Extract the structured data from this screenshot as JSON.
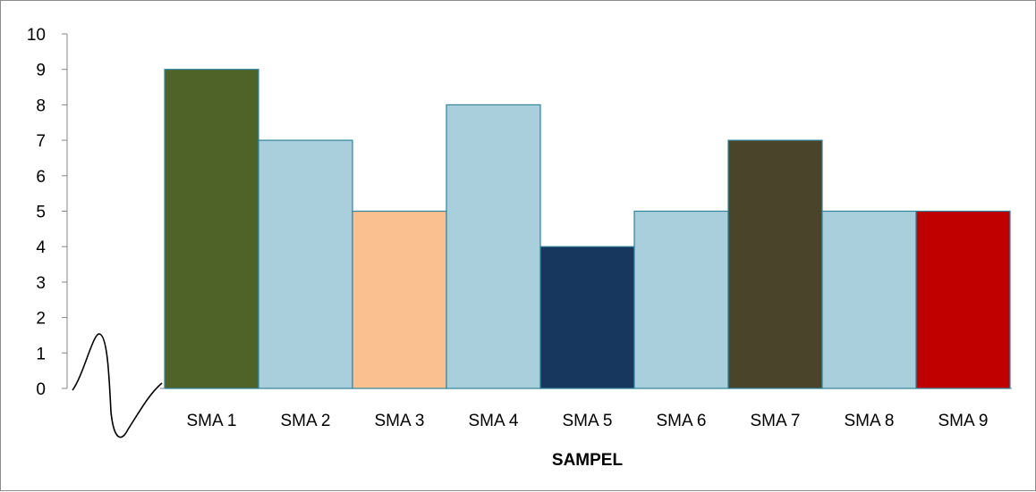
{
  "chart_data": {
    "type": "bar",
    "title": "",
    "xlabel": "SAMPEL",
    "ylabel": "",
    "ylim": [
      0,
      10
    ],
    "yticks": [
      "0",
      "1",
      "2",
      "3",
      "4",
      "5",
      "6",
      "7",
      "8",
      "9",
      "10"
    ],
    "categories": [
      "SMA 1",
      "SMA 2",
      "SMA 3",
      "SMA 4",
      "SMA 5",
      "SMA 6",
      "SMA 7",
      "SMA 8",
      "SMA 9"
    ],
    "values": [
      9,
      7,
      5,
      8,
      4,
      5,
      7,
      5,
      5
    ],
    "bar_colors": [
      "#4f6228",
      "#a9cfdd",
      "#fac090",
      "#a9cfdd",
      "#17375e",
      "#a9cfdd",
      "#4a452a",
      "#a9cfdd",
      "#c00000"
    ],
    "bar_border_color": "#31849b",
    "axis_color": "#868686",
    "grid": false,
    "legend": "none",
    "axis_break": true
  }
}
